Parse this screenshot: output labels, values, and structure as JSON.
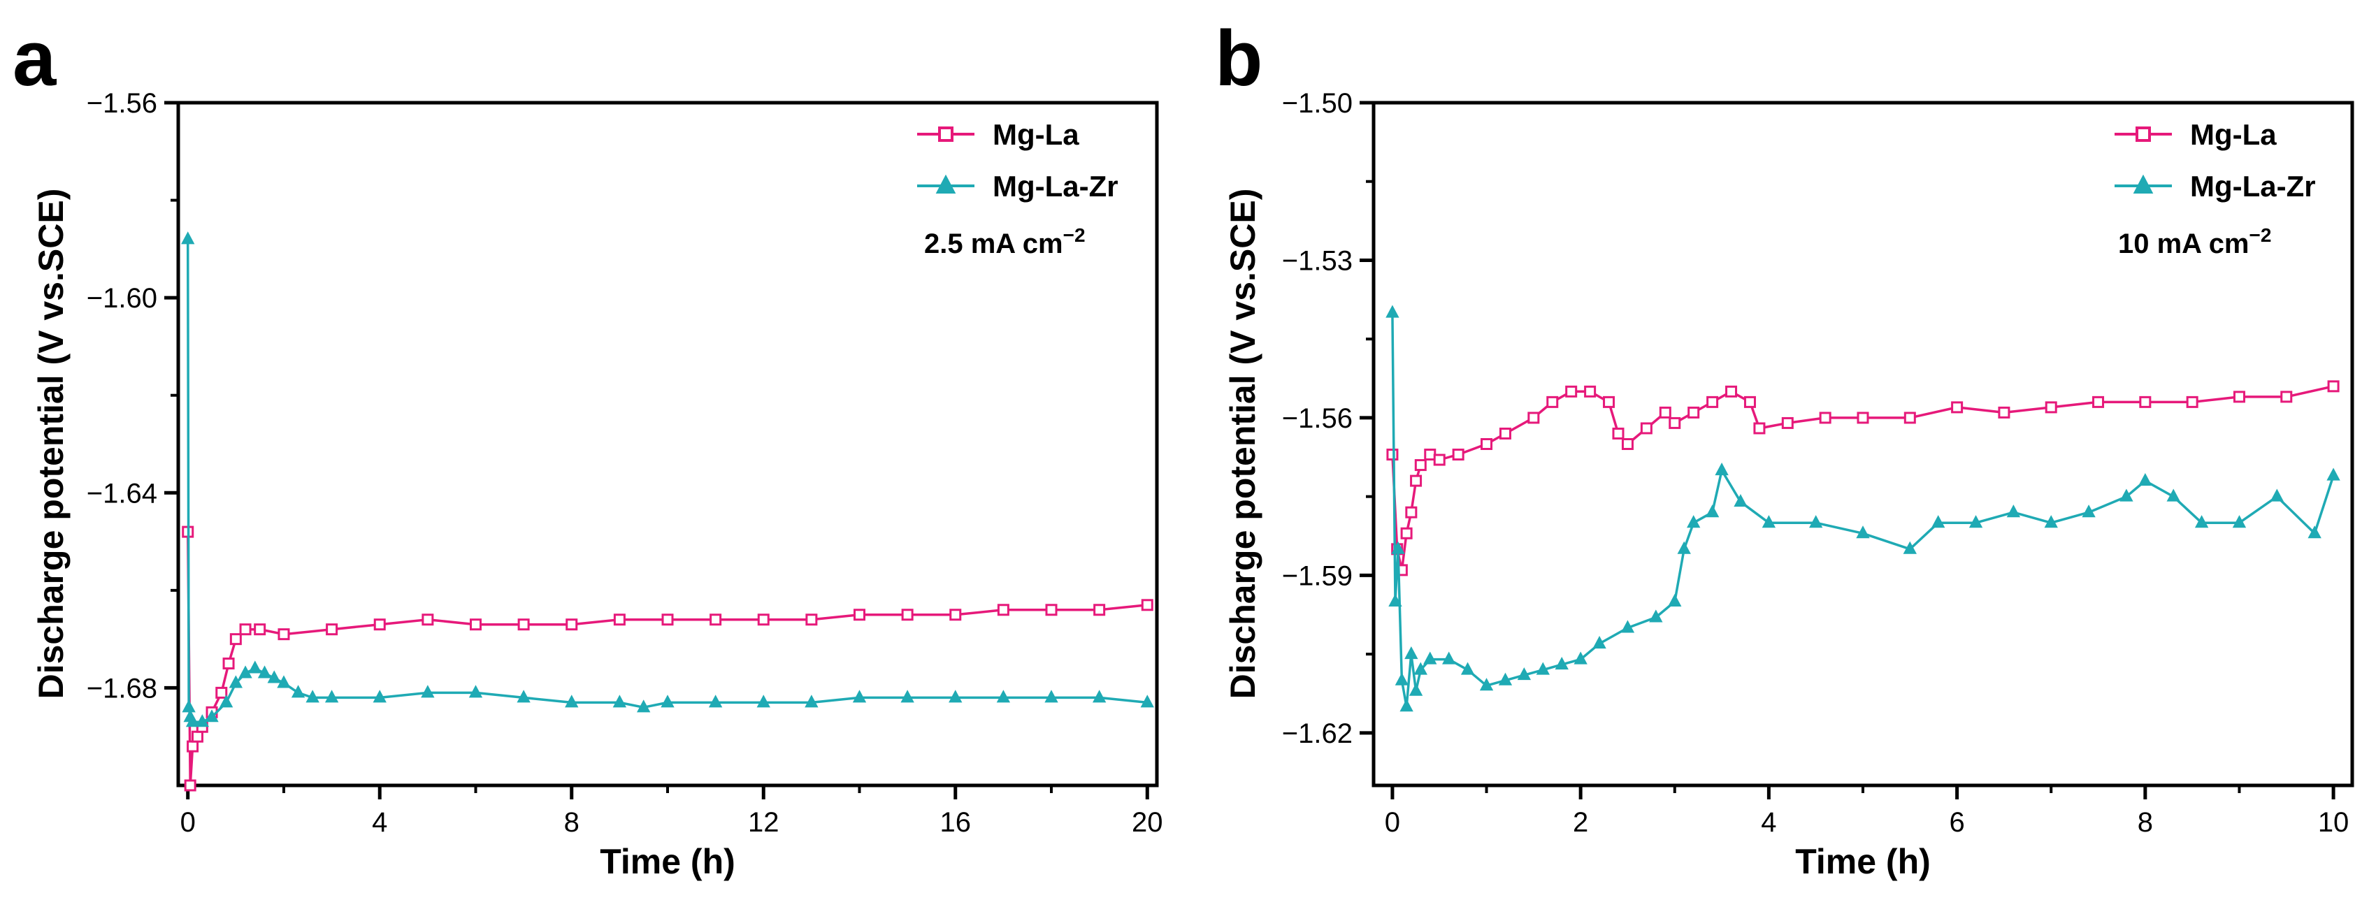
{
  "colors": {
    "mg_la": "#E6197A",
    "mg_la_zr": "#1FAAB4"
  },
  "chart_data": [
    {
      "panel": "a",
      "type": "line",
      "xlabel": "Time (h)",
      "ylabel": "Discharge potential  (V vs.SCE)",
      "xlim": [
        -0.2,
        20.2
      ],
      "ylim": [
        -1.7,
        -1.56
      ],
      "xticks": [
        0,
        4,
        8,
        12,
        16,
        20
      ],
      "xtick_labels": [
        "0",
        "4",
        "8",
        "12",
        "16",
        "20"
      ],
      "yticks": [
        -1.68,
        -1.64,
        -1.6,
        -1.56
      ],
      "ytick_labels": [
        "−1.68",
        "−1.64",
        "−1.60",
        "−1.56"
      ],
      "annotation": {
        "text": "2.5 mA cm",
        "sup": "−2"
      },
      "legend_position": "top-right",
      "series": [
        {
          "name": "Mg-La",
          "color_key": "mg_la",
          "marker": "square",
          "x": [
            0.0,
            0.05,
            0.1,
            0.2,
            0.3,
            0.5,
            0.7,
            0.85,
            1.0,
            1.2,
            1.5,
            2.0,
            3.0,
            4.0,
            5.0,
            6.0,
            7.0,
            8.0,
            9.0,
            10.0,
            11.0,
            12.0,
            13.0,
            14.0,
            15.0,
            16.0,
            17.0,
            18.0,
            19.0,
            20.0
          ],
          "y": [
            -1.648,
            -1.7,
            -1.692,
            -1.69,
            -1.688,
            -1.685,
            -1.681,
            -1.675,
            -1.67,
            -1.668,
            -1.668,
            -1.669,
            -1.668,
            -1.667,
            -1.666,
            -1.667,
            -1.667,
            -1.667,
            -1.666,
            -1.666,
            -1.666,
            -1.666,
            -1.666,
            -1.665,
            -1.665,
            -1.665,
            -1.664,
            -1.664,
            -1.664,
            -1.663
          ]
        },
        {
          "name": "Mg-La-Zr",
          "color_key": "mg_la_zr",
          "marker": "triangle",
          "x": [
            0.0,
            0.02,
            0.05,
            0.1,
            0.3,
            0.5,
            0.8,
            1.0,
            1.2,
            1.4,
            1.6,
            1.8,
            2.0,
            2.3,
            2.6,
            3.0,
            4.0,
            5.0,
            6.0,
            7.0,
            8.0,
            9.0,
            9.5,
            10.0,
            11.0,
            12.0,
            13.0,
            14.0,
            15.0,
            16.0,
            17.0,
            18.0,
            19.0,
            20.0
          ],
          "y": [
            -1.588,
            -1.684,
            -1.686,
            -1.687,
            -1.687,
            -1.686,
            -1.683,
            -1.679,
            -1.677,
            -1.676,
            -1.677,
            -1.678,
            -1.679,
            -1.681,
            -1.682,
            -1.682,
            -1.682,
            -1.681,
            -1.681,
            -1.682,
            -1.683,
            -1.683,
            -1.684,
            -1.683,
            -1.683,
            -1.683,
            -1.683,
            -1.682,
            -1.682,
            -1.682,
            -1.682,
            -1.682,
            -1.682,
            -1.683
          ]
        }
      ]
    },
    {
      "panel": "b",
      "type": "line",
      "xlabel": "Time (h)",
      "ylabel": "Discharge potential  (V vs.SCE)",
      "xlim": [
        -0.2,
        10.2
      ],
      "ylim": [
        -1.63,
        -1.5
      ],
      "xticks": [
        0,
        2,
        4,
        6,
        8,
        10
      ],
      "xtick_labels": [
        "0",
        "2",
        "4",
        "6",
        "8",
        "10"
      ],
      "yticks": [
        -1.62,
        -1.59,
        -1.56,
        -1.53,
        -1.5
      ],
      "ytick_labels": [
        "−1.62",
        "−1.59",
        "−1.56",
        "−1.53",
        "−1.50"
      ],
      "annotation": {
        "text": "10 mA cm",
        "sup": "−2"
      },
      "legend_position": "top-right",
      "series": [
        {
          "name": "Mg-La",
          "color_key": "mg_la",
          "marker": "square",
          "x": [
            0.0,
            0.05,
            0.1,
            0.15,
            0.2,
            0.25,
            0.3,
            0.4,
            0.5,
            0.7,
            1.0,
            1.2,
            1.5,
            1.7,
            1.9,
            2.1,
            2.3,
            2.4,
            2.5,
            2.7,
            2.9,
            3.0,
            3.2,
            3.4,
            3.6,
            3.8,
            3.9,
            4.2,
            4.6,
            5.0,
            5.5,
            6.0,
            6.5,
            7.0,
            7.5,
            8.0,
            8.5,
            9.0,
            9.5,
            10.0
          ],
          "y": [
            -1.567,
            -1.585,
            -1.589,
            -1.582,
            -1.578,
            -1.572,
            -1.569,
            -1.567,
            -1.568,
            -1.567,
            -1.565,
            -1.563,
            -1.56,
            -1.557,
            -1.555,
            -1.555,
            -1.557,
            -1.563,
            -1.565,
            -1.562,
            -1.559,
            -1.561,
            -1.559,
            -1.557,
            -1.555,
            -1.557,
            -1.562,
            -1.561,
            -1.56,
            -1.56,
            -1.56,
            -1.558,
            -1.559,
            -1.558,
            -1.557,
            -1.557,
            -1.557,
            -1.556,
            -1.556,
            -1.554
          ]
        },
        {
          "name": "Mg-La-Zr",
          "color_key": "mg_la_zr",
          "marker": "triangle",
          "x": [
            0.0,
            0.03,
            0.06,
            0.1,
            0.15,
            0.2,
            0.25,
            0.3,
            0.4,
            0.6,
            0.8,
            1.0,
            1.2,
            1.4,
            1.6,
            1.8,
            2.0,
            2.2,
            2.5,
            2.8,
            3.0,
            3.1,
            3.2,
            3.4,
            3.5,
            3.7,
            4.0,
            4.5,
            5.0,
            5.5,
            5.8,
            6.2,
            6.6,
            7.0,
            7.4,
            7.8,
            8.0,
            8.3,
            8.6,
            9.0,
            9.4,
            9.8,
            10.0
          ],
          "y": [
            -1.54,
            -1.595,
            -1.585,
            -1.61,
            -1.615,
            -1.605,
            -1.612,
            -1.608,
            -1.606,
            -1.606,
            -1.608,
            -1.611,
            -1.61,
            -1.609,
            -1.608,
            -1.607,
            -1.606,
            -1.603,
            -1.6,
            -1.598,
            -1.595,
            -1.585,
            -1.58,
            -1.578,
            -1.57,
            -1.576,
            -1.58,
            -1.58,
            -1.582,
            -1.585,
            -1.58,
            -1.58,
            -1.578,
            -1.58,
            -1.578,
            -1.575,
            -1.572,
            -1.575,
            -1.58,
            -1.58,
            -1.575,
            -1.582,
            -1.571
          ]
        }
      ]
    }
  ]
}
